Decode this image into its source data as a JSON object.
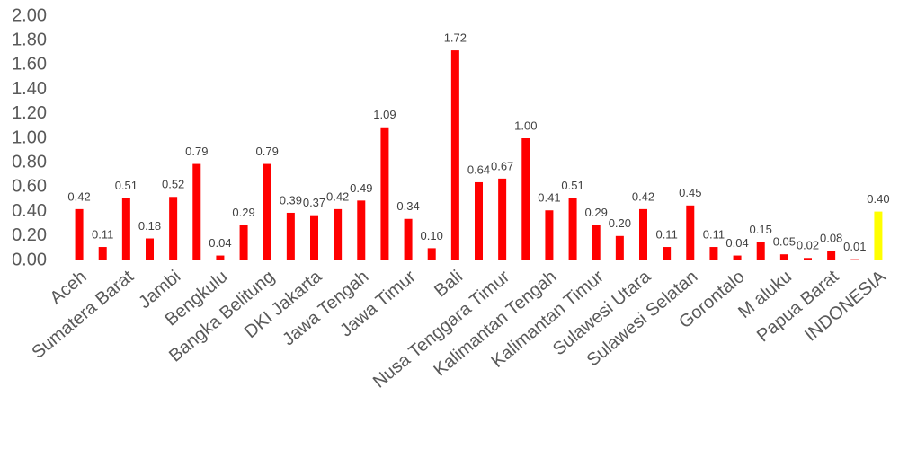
{
  "chart_data": {
    "type": "bar",
    "categories": [
      "Aceh",
      null,
      "Sumatera Barat",
      null,
      "Jambi",
      null,
      "Bengkulu",
      null,
      "Bangka Belitung",
      null,
      "DKI Jakarta",
      null,
      "Jawa Tengah",
      null,
      "Jawa Timur",
      null,
      "Bali",
      null,
      "Nusa Tenggara Timur",
      null,
      "Kalimantan Tengah",
      null,
      "Kalimantan Timur",
      null,
      "Sulawesi Utara",
      null,
      "Sulawesi Selatan",
      null,
      "Gorontalo",
      null,
      "M aluku",
      null,
      "Papua Barat",
      null,
      "INDONESIA"
    ],
    "values": [
      0.42,
      0.11,
      0.51,
      0.18,
      0.52,
      0.79,
      0.04,
      0.29,
      0.79,
      0.39,
      0.37,
      0.42,
      0.49,
      1.09,
      0.34,
      0.1,
      1.72,
      0.64,
      0.67,
      1.0,
      0.41,
      0.51,
      0.29,
      0.2,
      0.42,
      0.11,
      0.45,
      0.11,
      0.04,
      0.15,
      0.05,
      0.02,
      0.08,
      0.01,
      0.4
    ],
    "value_labels": [
      "0.42",
      "0.11",
      "0.51",
      "0.18",
      "0.52",
      "0.79",
      "0.04",
      "0.29",
      "0.79",
      "0.39",
      "0.37",
      "0.42",
      "0.49",
      "1.09",
      "0.34",
      "0.10",
      "1.72",
      "0.64",
      "0.67",
      "1.00",
      "0.41",
      "0.51",
      "0.29",
      "0.20",
      "0.42",
      "0.11",
      "0.45",
      "0.11",
      "0.04",
      "0.15",
      "0.05",
      "0.02",
      "0.08",
      "0.01",
      "0.40"
    ],
    "colors": [
      "#ff0000",
      "#ff0000",
      "#ff0000",
      "#ff0000",
      "#ff0000",
      "#ff0000",
      "#ff0000",
      "#ff0000",
      "#ff0000",
      "#ff0000",
      "#ff0000",
      "#ff0000",
      "#ff0000",
      "#ff0000",
      "#ff0000",
      "#ff0000",
      "#ff0000",
      "#ff0000",
      "#ff0000",
      "#ff0000",
      "#ff0000",
      "#ff0000",
      "#ff0000",
      "#ff0000",
      "#ff0000",
      "#ff0000",
      "#ff0000",
      "#ff0000",
      "#ff0000",
      "#ff0000",
      "#ff0000",
      "#ff0000",
      "#ff0000",
      "#ff0000",
      "#ffff00"
    ],
    "ylim": [
      0,
      2
    ],
    "yticks": [
      {
        "value": 0,
        "label": "0.00"
      },
      {
        "value": 0.2,
        "label": "0.20"
      },
      {
        "value": 0.4,
        "label": "0.40"
      },
      {
        "value": 0.6,
        "label": "0.60"
      },
      {
        "value": 0.8,
        "label": "0.80"
      },
      {
        "value": 1,
        "label": "1.00"
      },
      {
        "value": 1.2,
        "label": "1.20"
      },
      {
        "value": 1.4,
        "label": "1.40"
      },
      {
        "value": 1.6,
        "label": "1.60"
      },
      {
        "value": 1.8,
        "label": "1.80"
      },
      {
        "value": 2,
        "label": "2.00"
      }
    ],
    "grid": false
  }
}
